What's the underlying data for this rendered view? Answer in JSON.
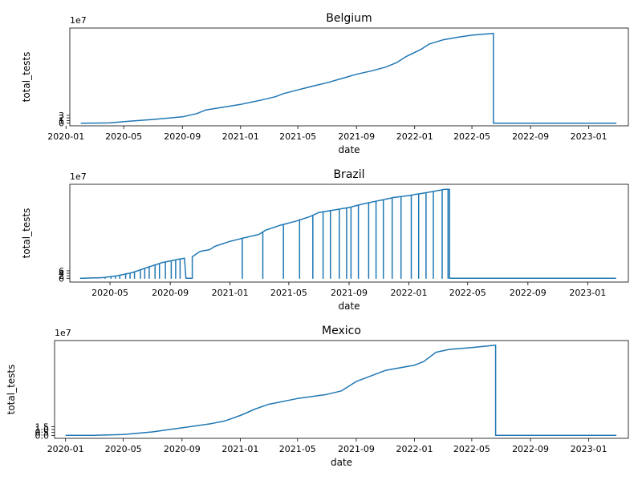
{
  "chart_data": [
    {
      "type": "line",
      "title": "Belgium",
      "xlabel": "date",
      "ylabel": "total_tests",
      "y_offset_label": "1e7",
      "xlim": [
        "2020-01-09",
        "2023-03-25"
      ],
      "ylim": [
        -1,
        36
      ],
      "x_ticks": [
        "2020-01",
        "2020-05",
        "2020-09",
        "2021-01",
        "2021-05",
        "2021-09",
        "2022-01",
        "2022-05",
        "2022-09",
        "2023-01"
      ],
      "y_ticks": [
        0,
        1,
        2,
        3
      ],
      "grid": false,
      "series": [
        {
          "color": "#1f77b4",
          "x": [
            "2020-02-01",
            "2020-04-01",
            "2020-05-15",
            "2020-07-01",
            "2020-09-01",
            "2020-10-01",
            "2020-10-20",
            "2020-12-01",
            "2021-01-01",
            "2021-02-15",
            "2021-03-15",
            "2021-04-01",
            "2021-05-01",
            "2021-06-01",
            "2021-07-01",
            "2021-08-01",
            "2021-09-01",
            "2021-10-01",
            "2021-11-01",
            "2021-11-25",
            "2021-12-15",
            "2022-01-15",
            "2022-02-01",
            "2022-03-01",
            "2022-04-01",
            "2022-05-01",
            "2022-06-15",
            "2022-06-15",
            "2023-02-28"
          ],
          "values": [
            0.0,
            0.1,
            0.8,
            1.4,
            2.4,
            3.6,
            5.0,
            6.2,
            7.1,
            8.8,
            10.0,
            11.2,
            12.6,
            14.0,
            15.3,
            16.9,
            18.5,
            19.7,
            21.2,
            23.0,
            25.3,
            28.0,
            30.0,
            31.5,
            32.5,
            33.3,
            34.0,
            0.0,
            0.0
          ]
        }
      ]
    },
    {
      "type": "line",
      "title": "Brazil",
      "xlabel": "date",
      "ylabel": "total_tests",
      "y_offset_label": "1e7",
      "xlim": [
        "2020-02-09",
        "2023-03-25"
      ],
      "ylim": [
        -3,
        75
      ],
      "x_ticks": [
        "2020-05",
        "2020-09",
        "2021-01",
        "2021-05",
        "2021-09",
        "2022-01",
        "2022-05",
        "2022-09",
        "2023-01"
      ],
      "y_ticks": [
        0,
        2,
        4,
        6
      ],
      "grid": false,
      "series": [
        {
          "color": "#1f77b4",
          "baseline_dates": [
            "2020-03-01",
            "2023-02-28"
          ],
          "envelope_x": [
            "2020-03-01",
            "2020-04-15",
            "2020-05-15",
            "2020-06-15",
            "2020-07-15",
            "2020-08-15",
            "2020-09-15",
            "2020-10-15",
            "2020-11-01",
            "2020-11-20",
            "2020-12-01",
            "2021-01-01",
            "2021-02-01",
            "2021-03-01",
            "2021-03-15",
            "2021-04-15",
            "2021-05-15",
            "2021-06-15",
            "2021-07-01",
            "2021-08-01",
            "2021-09-01",
            "2021-10-01",
            "2021-11-01",
            "2021-12-01",
            "2022-01-01",
            "2022-01-15",
            "2022-02-01",
            "2022-02-15",
            "2022-03-01",
            "2022-03-15"
          ],
          "envelope_values": [
            0.0,
            0.5,
            2.0,
            4.5,
            8.5,
            12.5,
            15.0,
            17.0,
            21.5,
            22.8,
            25.5,
            29.5,
            32.5,
            35.0,
            38.5,
            42.5,
            45.5,
            49.5,
            52.5,
            54.5,
            56.5,
            59.5,
            62.0,
            64.5,
            66.0,
            67.0,
            68.0,
            69.0,
            70.0,
            71.0
          ],
          "spike_dates": [
            "2020-04-20",
            "2020-05-01",
            "2020-05-10",
            "2020-05-20",
            "2020-06-01",
            "2020-06-10",
            "2020-06-20",
            "2020-07-01",
            "2020-07-10",
            "2020-07-20",
            "2020-08-01",
            "2020-08-10",
            "2020-08-20",
            "2020-09-01",
            "2020-09-10",
            "2020-09-20",
            "2020-10-01",
            "2021-01-25",
            "2021-03-08",
            "2021-04-20",
            "2021-05-22",
            "2021-06-18",
            "2021-07-10",
            "2021-07-25",
            "2021-08-10",
            "2021-08-25",
            "2021-09-05",
            "2021-09-20",
            "2021-10-10",
            "2021-10-25",
            "2021-11-10",
            "2021-11-28",
            "2021-12-15",
            "2022-01-05",
            "2022-01-20",
            "2022-02-05",
            "2022-02-20",
            "2022-03-10",
            "2022-03-20"
          ],
          "drop_start": "2020-10-01",
          "drop_end": "2020-10-15",
          "cutoff": "2022-03-25"
        }
      ]
    },
    {
      "type": "line",
      "title": "Mexico",
      "xlabel": "date",
      "ylabel": "total_tests",
      "y_offset_label": "1e7",
      "xlim": [
        "2019-12-09",
        "2023-03-25"
      ],
      "ylim": [
        -0.5,
        16.2
      ],
      "x_ticks": [
        "2020-01",
        "2020-05",
        "2020-09",
        "2021-01",
        "2021-05",
        "2021-09",
        "2022-01",
        "2022-05",
        "2022-09",
        "2023-01"
      ],
      "y_ticks": [
        0.0,
        0.5,
        1.0,
        1.5
      ],
      "y_tick_labels": [
        "0.0",
        "0.5",
        "1.0",
        "1.5"
      ],
      "grid": false,
      "series": [
        {
          "color": "#1f77b4",
          "x": [
            "2020-01-01",
            "2020-03-01",
            "2020-05-01",
            "2020-07-01",
            "2020-09-01",
            "2020-11-01",
            "2020-12-01",
            "2021-01-01",
            "2021-02-01",
            "2021-03-01",
            "2021-05-01",
            "2021-07-01",
            "2021-08-01",
            "2021-09-01",
            "2021-11-01",
            "2022-01-01",
            "2022-01-20",
            "2022-02-15",
            "2022-03-15",
            "2022-05-01",
            "2022-06-20",
            "2022-06-20",
            "2023-02-28"
          ],
          "values": [
            0.0,
            0.02,
            0.15,
            0.6,
            1.3,
            2.0,
            2.5,
            3.4,
            4.5,
            5.3,
            6.3,
            7.0,
            7.6,
            9.2,
            11.1,
            12.0,
            12.6,
            14.2,
            14.7,
            15.0,
            15.4,
            0.0,
            0.0
          ]
        }
      ]
    }
  ]
}
